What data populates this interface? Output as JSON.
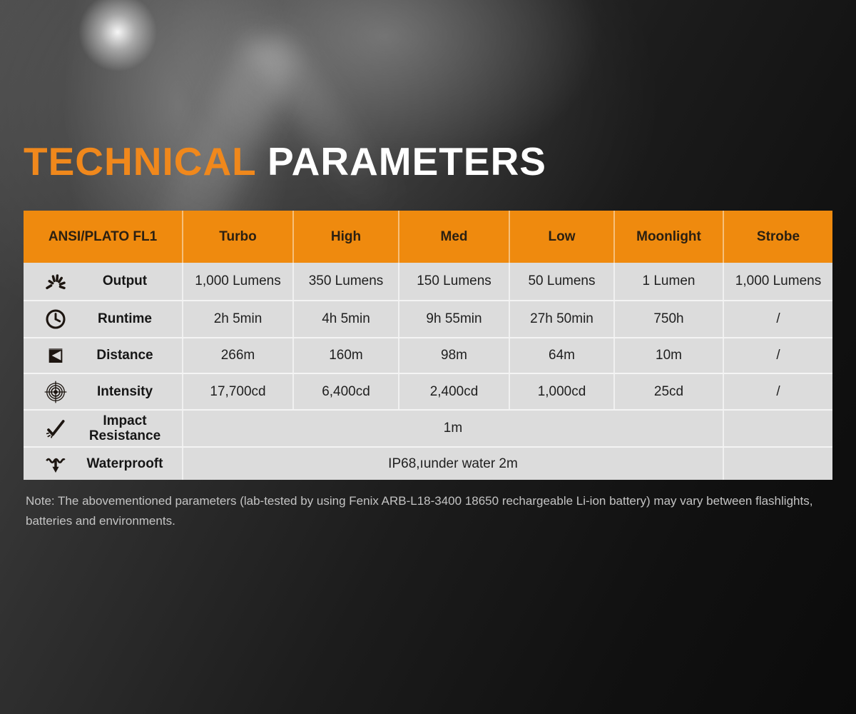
{
  "title": {
    "part1": "TECHNICAL",
    "part2": "PARAMETERS"
  },
  "colors": {
    "accent_orange": "#F0881C",
    "table_header_bg": "#EF8A0E",
    "table_row_bg": "#DCDCDC",
    "title_white": "#FFFFFF",
    "note_gray": "#C4C4C4"
  },
  "chart_data": {
    "type": "table",
    "title": "TECHNICAL PARAMETERS",
    "columns": [
      "ANSI/PLATO FL1",
      "Turbo",
      "High",
      "Med",
      "Low",
      "Moonlight",
      "Strobe"
    ],
    "rows": [
      {
        "icon": "output-burst-icon",
        "label": "Output",
        "values": [
          "1,000 Lumens",
          "350 Lumens",
          "150 Lumens",
          "50 Lumens",
          "1 Lumen",
          "1,000 Lumens"
        ]
      },
      {
        "icon": "clock-icon",
        "label": "Runtime",
        "values": [
          "2h 5min",
          "4h 5min",
          "9h 55min",
          "27h 50min",
          "750h",
          "/"
        ]
      },
      {
        "icon": "distance-flag-icon",
        "label": "Distance",
        "values": [
          "266m",
          "160m",
          "98m",
          "64m",
          "10m",
          "/"
        ]
      },
      {
        "icon": "intensity-target-icon",
        "label": "Intensity",
        "values": [
          "17,700cd",
          "6,400cd",
          "2,400cd",
          "1,000cd",
          "25cd",
          "/"
        ]
      },
      {
        "icon": "impact-check-icon",
        "label": "Impact Resistance",
        "merged_value": "1m"
      },
      {
        "icon": "waterproof-arrow-icon",
        "label": "Waterprooft",
        "merged_value": "IP68,ıunder water 2m"
      }
    ]
  },
  "note": {
    "text": "Note: The abovementioned parameters (lab-tested by using Fenix ARB-L18-3400 18650 rechargeable Li-ion battery) may vary between flashlights, batteries and environments."
  }
}
